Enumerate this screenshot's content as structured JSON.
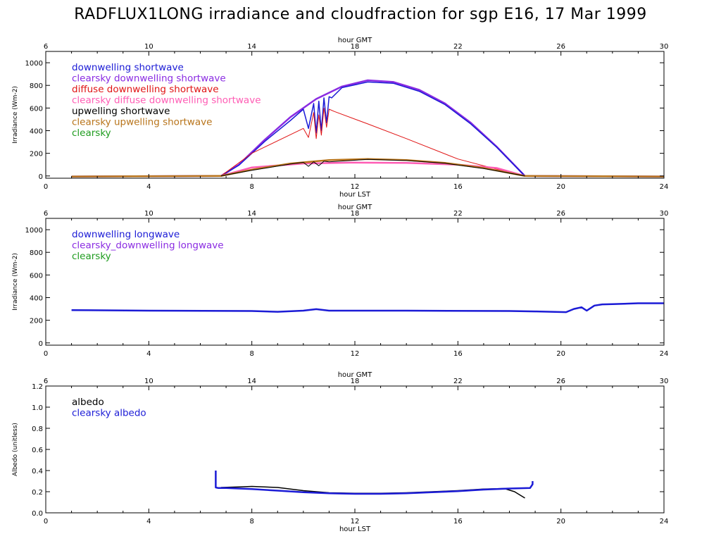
{
  "title": "RADFLUX1LONG irradiance and cloudfraction for sgp E16, 17 Mar 1999",
  "colors": {
    "blue": "#1b1bd6",
    "purple": "#8a2be2",
    "red": "#e01414",
    "black": "#000000",
    "pink": "#ff5cb4",
    "brown": "#b8741a",
    "green": "#1f9c1f"
  },
  "chart_data": [
    {
      "type": "line",
      "name": "shortwave",
      "xlabel": "hour LST",
      "x2label": "hour GMT",
      "ylabel": "Irradiance (Wm-2)",
      "xlim": [
        0,
        24
      ],
      "ylim": [
        -20,
        1100
      ],
      "xticks": [
        0,
        4,
        8,
        12,
        16,
        20,
        24
      ],
      "xtick_labels": [
        "0",
        "4",
        "8",
        "12",
        "16",
        "20",
        "24"
      ],
      "x2ticks": [
        0,
        4,
        8,
        12,
        16,
        20,
        24
      ],
      "x2tick_labels": [
        "6",
        "10",
        "14",
        "18",
        "22",
        "26",
        "30"
      ],
      "yticks": [
        0,
        200,
        400,
        600,
        800,
        1000
      ],
      "ytick_labels": [
        "0",
        "200",
        "400",
        "600",
        "800",
        "1000"
      ],
      "legend": [
        {
          "label": "downwelling shortwave",
          "color": "#1b1bd6"
        },
        {
          "label": "clearsky downwelling shortwave",
          "color": "#8a2be2"
        },
        {
          "label": "diffuse downwelling shortwave",
          "color": "#e01414"
        },
        {
          "label": "clearsky diffuse downwelling shortwave",
          "color": "#ff5cb4"
        },
        {
          "label": "upwelling shortwave",
          "color": "#000000"
        },
        {
          "label": "clearsky upwelling shortwave",
          "color": "#b8741a"
        },
        {
          "label": "clearsky",
          "color": "#1f9c1f"
        }
      ],
      "series": [
        {
          "name": "clearsky downwelling shortwave",
          "color": "#8a2be2",
          "width": 2.5,
          "x": [
            1,
            6.8,
            7.5,
            8.5,
            9.5,
            10.5,
            11.5,
            12.5,
            13.5,
            14.5,
            15.5,
            16.5,
            17.5,
            18.6,
            24
          ],
          "y": [
            -5,
            0,
            100,
            320,
            520,
            680,
            790,
            845,
            830,
            760,
            640,
            470,
            260,
            0,
            -5
          ]
        },
        {
          "name": "downwelling shortwave",
          "color": "#1b1bd6",
          "width": 1.5,
          "x": [
            1,
            6.8,
            7.5,
            8.5,
            9.5,
            10.0,
            10.2,
            10.4,
            10.5,
            10.6,
            10.7,
            10.8,
            10.9,
            11.0,
            11.1,
            11.5,
            12.5,
            13.5,
            14.5,
            15.5,
            16.5,
            17.5,
            18.6,
            24
          ],
          "y": [
            -5,
            0,
            95,
            305,
            490,
            590,
            420,
            640,
            380,
            660,
            400,
            690,
            470,
            700,
            690,
            780,
            830,
            818,
            748,
            630,
            460,
            255,
            0,
            -5
          ]
        },
        {
          "name": "diffuse downwelling shortwave",
          "color": "#e01414",
          "width": 1,
          "x": [
            6.8,
            8.0,
            10.0,
            10.2,
            10.4,
            10.5,
            10.6,
            10.7,
            10.8,
            10.9,
            11.0,
            11.2,
            12.5,
            14.0,
            16.0,
            17.5,
            18.6
          ],
          "y": [
            0,
            200,
            420,
            340,
            560,
            330,
            540,
            360,
            600,
            430,
            590,
            570,
            460,
            330,
            150,
            60,
            0
          ]
        },
        {
          "name": "clearsky diffuse downwelling shortwave",
          "color": "#ff5cb4",
          "width": 2.5,
          "x": [
            6.8,
            8,
            10,
            12,
            14,
            16,
            17.5,
            18.6
          ],
          "y": [
            0,
            75,
            110,
            118,
            115,
            100,
            70,
            0
          ]
        },
        {
          "name": "clearsky upwelling shortwave",
          "color": "#b8741a",
          "width": 2.5,
          "x": [
            1,
            6.8,
            8,
            9.5,
            11,
            12.5,
            14,
            15.5,
            17,
            18.6,
            24
          ],
          "y": [
            -5,
            0,
            55,
            110,
            140,
            150,
            140,
            115,
            70,
            0,
            -5
          ]
        },
        {
          "name": "upwelling shortwave",
          "color": "#000000",
          "width": 1,
          "x": [
            6.8,
            8,
            9.5,
            10.0,
            10.2,
            10.4,
            10.6,
            10.8,
            11.0,
            12.5,
            14,
            15.5,
            17,
            18.6
          ],
          "y": [
            0,
            50,
            105,
            120,
            85,
            125,
            90,
            130,
            125,
            146,
            136,
            112,
            66,
            0
          ]
        }
      ]
    },
    {
      "type": "line",
      "name": "longwave",
      "xlabel": "",
      "x2label": "hour GMT",
      "ylabel": "Irradiance (Wm-2)",
      "xlim": [
        0,
        24
      ],
      "ylim": [
        -20,
        1100
      ],
      "xticks": [
        0,
        4,
        8,
        12,
        16,
        20,
        24
      ],
      "xtick_labels": [
        "0",
        "4",
        "8",
        "12",
        "16",
        "20",
        "24"
      ],
      "x2ticks": [
        0,
        4,
        8,
        12,
        16,
        20,
        24
      ],
      "x2tick_labels": [
        "6",
        "10",
        "14",
        "18",
        "22",
        "26",
        "30"
      ],
      "yticks": [
        0,
        200,
        400,
        600,
        800,
        1000
      ],
      "ytick_labels": [
        "0",
        "200",
        "400",
        "600",
        "800",
        "1000"
      ],
      "legend": [
        {
          "label": "downwelling longwave",
          "color": "#1b1bd6"
        },
        {
          "label": "clearsky_downwelling longwave",
          "color": "#8a2be2"
        },
        {
          "label": "clearsky",
          "color": "#1f9c1f"
        }
      ],
      "series": [
        {
          "name": "downwelling longwave",
          "color": "#1b1bd6",
          "width": 2.5,
          "x": [
            1,
            4,
            8,
            9,
            10,
            10.5,
            11,
            14,
            18,
            19,
            20.2,
            20.5,
            20.8,
            21.0,
            21.3,
            21.6,
            22,
            23,
            24
          ],
          "y": [
            290,
            285,
            282,
            275,
            285,
            298,
            285,
            285,
            282,
            278,
            272,
            300,
            315,
            285,
            330,
            340,
            342,
            350,
            350
          ]
        }
      ]
    },
    {
      "type": "line",
      "name": "albedo",
      "xlabel": "hour LST",
      "x2label": "hour GMT",
      "ylabel": "Albedo (unitless)",
      "xlim": [
        0,
        24
      ],
      "ylim": [
        0,
        1.2
      ],
      "xticks": [
        0,
        4,
        8,
        12,
        16,
        20,
        24
      ],
      "xtick_labels": [
        "0",
        "4",
        "8",
        "12",
        "16",
        "20",
        "24"
      ],
      "x2ticks": [
        0,
        4,
        8,
        12,
        16,
        20,
        24
      ],
      "x2tick_labels": [
        "6",
        "10",
        "14",
        "18",
        "22",
        "26",
        "30"
      ],
      "yticks": [
        0,
        0.2,
        0.4,
        0.6,
        0.8,
        1.0,
        1.2
      ],
      "ytick_labels": [
        "0.0",
        "0.2",
        "0.4",
        "0.6",
        "0.8",
        "1.0",
        "1.2"
      ],
      "legend": [
        {
          "label": "albedo",
          "color": "#000000"
        },
        {
          "label": "clearsky albedo",
          "color": "#1b1bd6"
        }
      ],
      "series": [
        {
          "name": "albedo",
          "color": "#000000",
          "width": 1.5,
          "x": [
            6.8,
            7.5,
            8.0,
            8.5,
            9.0,
            10,
            11,
            12,
            13,
            14,
            15,
            16,
            17,
            17.8,
            18.2,
            18.4,
            18.6
          ],
          "y": [
            0.24,
            0.245,
            0.25,
            0.245,
            0.24,
            0.21,
            0.19,
            0.185,
            0.185,
            0.19,
            0.2,
            0.21,
            0.225,
            0.23,
            0.2,
            0.17,
            0.14
          ]
        },
        {
          "name": "clearsky albedo",
          "color": "#1b1bd6",
          "width": 2.5,
          "x": [
            6.6,
            6.6,
            6.7,
            7,
            8,
            9,
            10,
            11,
            12,
            13,
            14,
            15,
            16,
            17,
            18,
            18.8,
            18.9,
            18.9
          ],
          "y": [
            0.4,
            0.24,
            0.235,
            0.235,
            0.225,
            0.21,
            0.195,
            0.185,
            0.18,
            0.18,
            0.185,
            0.195,
            0.205,
            0.22,
            0.23,
            0.235,
            0.27,
            0.3
          ]
        }
      ]
    }
  ]
}
